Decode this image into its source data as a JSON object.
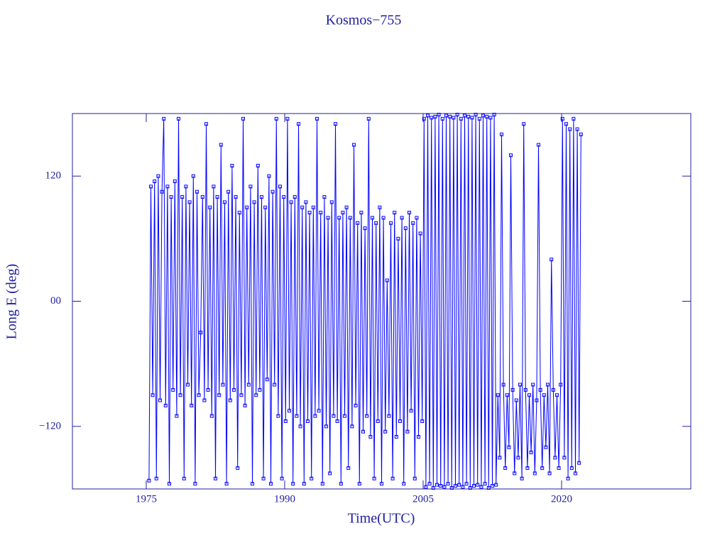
{
  "chart_data": {
    "type": "line",
    "title": "Kosmos−755",
    "x_label": "Time(UTC)",
    "y_label": "Long E (deg)",
    "xlim": [
      1967,
      2034
    ],
    "xticks": [
      1975,
      1990,
      2005,
      2020
    ],
    "ylim": [
      -180,
      180
    ],
    "yticks": [
      {
        "value": -120,
        "label": "−120"
      },
      {
        "value": 0,
        "label": "00"
      },
      120
    ],
    "series": [
      {
        "color": "#0000ff",
        "x": [
          1975.3,
          1975.5,
          1975.7,
          1975.9,
          1976.1,
          1976.3,
          1976.5,
          1976.7,
          1976.9,
          1977.1,
          1977.3,
          1977.5,
          1977.7,
          1977.9,
          1978.1,
          1978.3,
          1978.5,
          1978.7,
          1978.9,
          1979.1,
          1979.3,
          1979.5,
          1979.7,
          1979.9,
          1980.1,
          1980.3,
          1980.5,
          1980.7,
          1980.9,
          1981.1,
          1981.3,
          1981.5,
          1981.7,
          1981.9,
          1982.1,
          1982.3,
          1982.5,
          1982.7,
          1982.9,
          1983.1,
          1983.3,
          1983.5,
          1983.7,
          1983.9,
          1984.1,
          1984.3,
          1984.5,
          1984.7,
          1984.9,
          1985.1,
          1985.3,
          1985.5,
          1985.7,
          1985.9,
          1986.1,
          1986.3,
          1986.5,
          1986.7,
          1986.9,
          1987.1,
          1987.3,
          1987.5,
          1987.7,
          1987.9,
          1988.1,
          1988.3,
          1988.5,
          1988.7,
          1988.9,
          1989.1,
          1989.3,
          1989.5,
          1989.7,
          1989.9,
          1990.1,
          1990.3,
          1990.5,
          1990.7,
          1990.9,
          1991.1,
          1991.3,
          1991.5,
          1991.7,
          1991.9,
          1992.1,
          1992.3,
          1992.5,
          1992.7,
          1992.9,
          1993.1,
          1993.3,
          1993.5,
          1993.7,
          1993.9,
          1994.1,
          1994.3,
          1994.5,
          1994.7,
          1994.9,
          1995.1,
          1995.3,
          1995.5,
          1995.7,
          1995.9,
          1996.1,
          1996.3,
          1996.5,
          1996.7,
          1996.9,
          1997.1,
          1997.3,
          1997.5,
          1997.7,
          1997.9,
          1998.1,
          1998.3,
          1998.5,
          1998.7,
          1998.9,
          1999.1,
          1999.3,
          1999.5,
          1999.7,
          1999.9,
          2000.1,
          2000.3,
          2000.5,
          2000.7,
          2000.9,
          2001.1,
          2001.3,
          2001.5,
          2001.7,
          2001.9,
          2002.1,
          2002.3,
          2002.5,
          2002.7,
          2002.9,
          2003.1,
          2003.3,
          2003.5,
          2003.7,
          2003.9,
          2004.1,
          2004.3,
          2004.5,
          2004.7,
          2004.9,
          2005.1,
          2005.3,
          2005.5,
          2005.7,
          2005.9,
          2006.1,
          2006.3,
          2006.5,
          2006.7,
          2006.9,
          2007.1,
          2007.3,
          2007.5,
          2007.7,
          2007.9,
          2008.1,
          2008.3,
          2008.5,
          2008.7,
          2008.9,
          2009.1,
          2009.3,
          2009.5,
          2009.7,
          2009.9,
          2010.1,
          2010.3,
          2010.5,
          2010.7,
          2010.9,
          2011.1,
          2011.3,
          2011.5,
          2011.7,
          2011.9,
          2012.1,
          2012.3,
          2012.5,
          2012.7,
          2012.9,
          2013.1,
          2013.3,
          2013.5,
          2013.7,
          2013.9,
          2014.1,
          2014.3,
          2014.5,
          2014.7,
          2014.9,
          2015.1,
          2015.3,
          2015.5,
          2015.7,
          2015.9,
          2016.1,
          2016.3,
          2016.5,
          2016.7,
          2016.9,
          2017.1,
          2017.3,
          2017.5,
          2017.7,
          2017.9,
          2018.1,
          2018.3,
          2018.5,
          2018.7,
          2018.9,
          2019.1,
          2019.3,
          2019.5,
          2019.7,
          2019.9,
          2020.1,
          2020.3,
          2020.5,
          2020.7,
          2020.9,
          2021.1,
          2021.3,
          2021.5,
          2021.7,
          2021.9,
          2022.1
        ],
        "values": [
          -172,
          110,
          -90,
          115,
          -170,
          120,
          -95,
          105,
          175,
          -100,
          110,
          -175,
          100,
          -85,
          115,
          -110,
          175,
          -90,
          100,
          -170,
          110,
          -80,
          95,
          -100,
          120,
          -175,
          105,
          -90,
          -30,
          100,
          -95,
          170,
          -85,
          90,
          -110,
          110,
          -170,
          100,
          -90,
          150,
          -80,
          95,
          -175,
          105,
          -95,
          130,
          -85,
          100,
          -160,
          85,
          -90,
          175,
          -100,
          90,
          -80,
          110,
          -175,
          95,
          -90,
          130,
          -85,
          100,
          -170,
          90,
          -75,
          120,
          -175,
          105,
          -80,
          175,
          -110,
          110,
          -170,
          100,
          -115,
          175,
          -105,
          95,
          -175,
          100,
          -110,
          170,
          -120,
          90,
          -175,
          95,
          -115,
          85,
          -170,
          90,
          -110,
          175,
          -105,
          85,
          -175,
          100,
          -120,
          80,
          -165,
          95,
          -110,
          170,
          -115,
          80,
          -175,
          85,
          -110,
          90,
          -160,
          80,
          -120,
          150,
          -100,
          75,
          -175,
          85,
          -125,
          70,
          -110,
          175,
          -130,
          80,
          -170,
          75,
          -115,
          90,
          -175,
          80,
          -125,
          20,
          -110,
          75,
          -170,
          85,
          -130,
          60,
          -115,
          80,
          -175,
          70,
          -125,
          85,
          -105,
          75,
          -170,
          80,
          -130,
          65,
          -115,
          175,
          -178,
          178,
          -175,
          176,
          -179,
          177,
          -176,
          179,
          -177,
          175,
          -178,
          178,
          -175,
          177,
          -179,
          176,
          -177,
          179,
          -176,
          175,
          -178,
          178,
          -175,
          177,
          -179,
          176,
          -177,
          179,
          -176,
          175,
          -178,
          178,
          -175,
          177,
          -179,
          176,
          -177,
          179,
          -176,
          -90,
          -150,
          160,
          -80,
          -160,
          -90,
          -140,
          140,
          -85,
          -165,
          -95,
          -150,
          -80,
          -170,
          170,
          -85,
          -160,
          -90,
          -145,
          -80,
          -165,
          -95,
          150,
          -85,
          -160,
          -90,
          -140,
          -80,
          -165,
          40,
          -85,
          -150,
          -90,
          -160,
          -80,
          175,
          -150,
          170,
          -170,
          165,
          -160,
          175,
          -165,
          165,
          -155,
          160
        ]
      }
    ]
  }
}
